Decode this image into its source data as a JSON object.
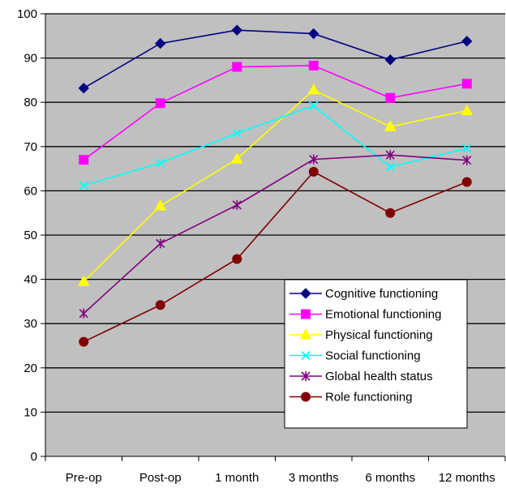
{
  "chart_data": {
    "type": "line",
    "categories": [
      "Pre-op",
      "Post-op",
      "1 month",
      "3 months",
      "6 months",
      "12 months"
    ],
    "ylim": [
      0,
      100
    ],
    "yticks": [
      0,
      10,
      20,
      30,
      40,
      50,
      60,
      70,
      80,
      90,
      100
    ],
    "grid": "horizontal",
    "plot_background": "#c0c0c0",
    "legend_position": "lower-right",
    "series": [
      {
        "name": "Cognitive functioning",
        "color": "#000080",
        "marker": "diamond",
        "values": [
          83.2,
          93.3,
          96.3,
          95.5,
          89.6,
          93.8
        ]
      },
      {
        "name": "Emotional functioning",
        "color": "#ff00ff",
        "marker": "square",
        "values": [
          67.0,
          79.8,
          88.0,
          88.3,
          81.0,
          84.2
        ]
      },
      {
        "name": "Physical functioning",
        "color": "#ffff00",
        "marker": "triangle",
        "values": [
          39.5,
          56.6,
          67.2,
          82.8,
          74.5,
          78.1
        ]
      },
      {
        "name": "Social functioning",
        "color": "#00ffff",
        "marker": "x",
        "values": [
          61.2,
          66.3,
          73.0,
          79.2,
          65.4,
          69.6
        ]
      },
      {
        "name": "Global health status",
        "color": "#800080",
        "marker": "star",
        "values": [
          32.3,
          48.1,
          56.8,
          67.1,
          68.1,
          66.9
        ]
      },
      {
        "name": "Role functioning",
        "color": "#800000",
        "marker": "circle",
        "values": [
          25.9,
          34.2,
          44.6,
          64.3,
          55.0,
          62.0
        ]
      }
    ]
  }
}
